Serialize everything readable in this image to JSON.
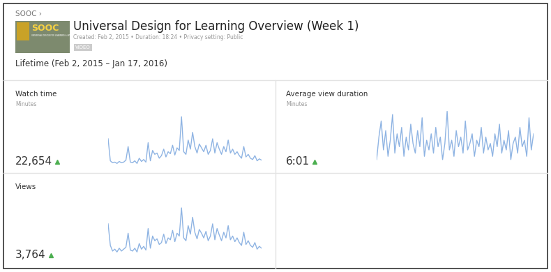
{
  "header": {
    "breadcrumb": "SOOC ›",
    "thumbnail": {
      "logo": "SOOC",
      "caption": "UNIVERSAL DESIGN FOR LEARNING & APPS"
    },
    "title": "Universal Design for Learning Overview (Week 1)",
    "meta": "Created: Feb 2, 2015 • Duration: 18:24 • Privacy setting: Public",
    "badge": "VIDEO",
    "period": "Lifetime (Feb 2, 2015 – Jan 17, 2016)"
  },
  "chart_data": [
    {
      "type": "line",
      "title": "Watch time",
      "unit": "Minutes",
      "total": "22,654",
      "color": "#8fb4e3",
      "tick_labels": false,
      "ylim": [
        0,
        420
      ],
      "values": [
        210,
        40,
        25,
        30,
        20,
        35,
        25,
        30,
        45,
        150,
        30,
        25,
        40,
        20,
        60,
        35,
        50,
        30,
        180,
        40,
        120,
        90,
        100,
        60,
        80,
        130,
        70,
        110,
        95,
        160,
        85,
        140,
        120,
        380,
        110,
        90,
        200,
        130,
        260,
        150,
        100,
        170,
        140,
        110,
        160,
        90,
        120,
        210,
        100,
        180,
        130,
        90,
        150,
        110,
        200,
        100,
        130,
        90,
        110,
        80,
        60,
        150,
        70,
        90,
        60,
        50,
        80,
        40,
        55,
        45
      ]
    },
    {
      "type": "line",
      "title": "Average view duration",
      "unit": "Minutes",
      "total": "6:01",
      "color": "#8fb4e3",
      "tick_labels": false,
      "ylim": [
        0,
        18
      ],
      "values": [
        2,
        9,
        14,
        5,
        11,
        3,
        8,
        16,
        4,
        10,
        6,
        12,
        3,
        9,
        5,
        13,
        7,
        4,
        11,
        6,
        15,
        3,
        8,
        5,
        10,
        4,
        12,
        6,
        9,
        2,
        7,
        17,
        5,
        8,
        3,
        11,
        6,
        9,
        4,
        14,
        5,
        7,
        10,
        3,
        8,
        6,
        12,
        4,
        9,
        5,
        7,
        3,
        10,
        6,
        13,
        4,
        8,
        5,
        11,
        2,
        7,
        9,
        4,
        12,
        6,
        8,
        3,
        15,
        5,
        10
      ]
    },
    {
      "type": "line",
      "title": "Views",
      "total": "3,764",
      "color": "#8fb4e3",
      "tick_labels": false,
      "ylim": [
        0,
        58
      ],
      "values": [
        35,
        12,
        6,
        8,
        5,
        9,
        6,
        8,
        10,
        25,
        7,
        6,
        9,
        5,
        14,
        8,
        11,
        7,
        30,
        9,
        22,
        17,
        19,
        13,
        15,
        24,
        14,
        20,
        18,
        28,
        16,
        25,
        22,
        52,
        20,
        17,
        33,
        24,
        42,
        26,
        19,
        29,
        25,
        20,
        27,
        17,
        22,
        35,
        18,
        30,
        23,
        17,
        26,
        20,
        33,
        18,
        22,
        16,
        20,
        15,
        12,
        26,
        13,
        17,
        12,
        10,
        15,
        8,
        11,
        9
      ]
    }
  ]
}
